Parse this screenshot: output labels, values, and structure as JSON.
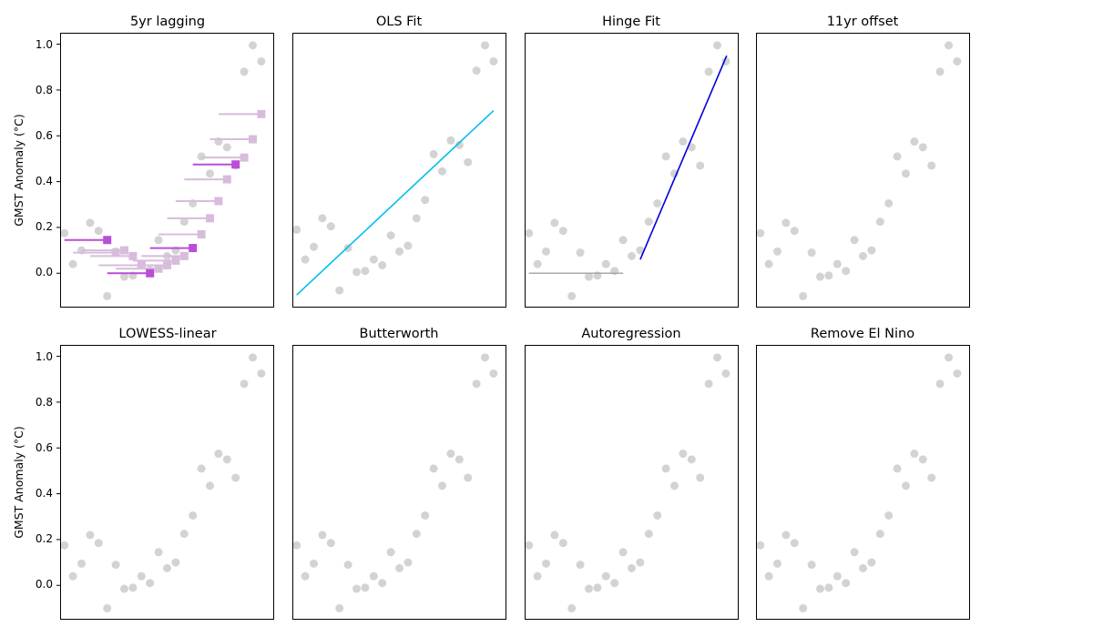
{
  "colors": {
    "background": "#ffffff",
    "data_points": "#d3d3d3",
    "ols_line": "#00bfef",
    "hinge_line": "#0000dd",
    "hinge_flat": "#a9a9a9",
    "lag_highlight": "#b94fd6",
    "lag_faded": "#d8bcdc"
  },
  "chart_data": [
    {
      "type": "scatter",
      "title": "5yr lagging",
      "ylabel": "GMST Anomaly (°C)",
      "xlim": [
        -0.5,
        24.5
      ],
      "ylim": [
        -0.15,
        1.05
      ],
      "yticks": [
        "0.0",
        "0.2",
        "0.4",
        "0.6",
        "0.8",
        "1.0"
      ],
      "points": {
        "x": [
          0,
          1,
          2,
          3,
          4,
          5,
          6,
          7,
          8,
          9,
          10,
          11,
          12,
          13,
          14,
          15,
          16,
          17,
          18,
          19,
          20,
          21,
          22,
          23,
          24
        ],
        "y": [
          0.175,
          0.04,
          0.1,
          0.22,
          0.185,
          -0.1,
          0.095,
          -0.015,
          -0.01,
          0.04,
          0.015,
          0.145,
          0.075,
          0.1,
          0.225,
          0.305,
          0.51,
          0.435,
          0.575,
          0.55,
          0.47,
          0.88,
          0.995,
          0.925,
          null
        ]
      },
      "lag_means": [
        {
          "x_start": 0,
          "x_end": 5,
          "y": 0.145,
          "highlight": true
        },
        {
          "x_start": 1,
          "x_end": 6,
          "y": 0.09,
          "highlight": false
        },
        {
          "x_start": 2,
          "x_end": 7,
          "y": 0.1,
          "highlight": false
        },
        {
          "x_start": 3,
          "x_end": 8,
          "y": 0.075,
          "highlight": false
        },
        {
          "x_start": 4,
          "x_end": 9,
          "y": 0.035,
          "highlight": false
        },
        {
          "x_start": 5,
          "x_end": 10,
          "y": 0.0,
          "highlight": true
        },
        {
          "x_start": 6,
          "x_end": 11,
          "y": 0.02,
          "highlight": false
        },
        {
          "x_start": 7,
          "x_end": 12,
          "y": 0.035,
          "highlight": false
        },
        {
          "x_start": 8,
          "x_end": 13,
          "y": 0.055,
          "highlight": false
        },
        {
          "x_start": 9,
          "x_end": 14,
          "y": 0.075,
          "highlight": false
        },
        {
          "x_start": 10,
          "x_end": 15,
          "y": 0.11,
          "highlight": true
        },
        {
          "x_start": 11,
          "x_end": 16,
          "y": 0.17,
          "highlight": false
        },
        {
          "x_start": 12,
          "x_end": 17,
          "y": 0.24,
          "highlight": false
        },
        {
          "x_start": 13,
          "x_end": 18,
          "y": 0.315,
          "highlight": false
        },
        {
          "x_start": 14,
          "x_end": 19,
          "y": 0.41,
          "highlight": false
        },
        {
          "x_start": 15,
          "x_end": 20,
          "y": 0.475,
          "highlight": true
        },
        {
          "x_start": 16,
          "x_end": 21,
          "y": 0.505,
          "highlight": false
        },
        {
          "x_start": 17,
          "x_end": 22,
          "y": 0.585,
          "highlight": false
        },
        {
          "x_start": 18,
          "x_end": 23,
          "y": 0.695,
          "highlight": false
        }
      ]
    },
    {
      "type": "scatter",
      "title": "OLS Fit",
      "xlim": [
        -0.5,
        24.5
      ],
      "ylim": [
        -0.15,
        1.05
      ],
      "points": {
        "x": [
          0,
          1,
          2,
          3,
          4,
          5,
          6,
          7,
          8,
          9,
          10,
          11,
          12,
          13,
          14,
          15,
          16,
          17,
          18,
          19,
          20,
          21,
          22,
          23
        ],
        "y": [
          0.19,
          0.06,
          0.115,
          0.24,
          0.205,
          -0.075,
          0.11,
          0.005,
          0.01,
          0.06,
          0.035,
          0.165,
          0.095,
          0.12,
          0.24,
          0.32,
          0.52,
          0.445,
          0.58,
          0.56,
          0.485,
          0.885,
          0.995,
          0.925
        ]
      },
      "fit_line": {
        "x": [
          0,
          23
        ],
        "y": [
          -0.095,
          0.71
        ]
      }
    },
    {
      "type": "scatter",
      "title": "Hinge Fit",
      "xlim": [
        -0.5,
        24.5
      ],
      "ylim": [
        -0.15,
        1.05
      ],
      "points": {
        "x": [
          0,
          1,
          2,
          3,
          4,
          5,
          6,
          7,
          8,
          9,
          10,
          11,
          12,
          13,
          14,
          15,
          16,
          17,
          18,
          19,
          20,
          21,
          22,
          23
        ],
        "y": [
          0.175,
          0.04,
          0.095,
          0.22,
          0.185,
          -0.1,
          0.09,
          -0.015,
          -0.01,
          0.04,
          0.01,
          0.145,
          0.075,
          0.1,
          0.225,
          0.305,
          0.51,
          0.435,
          0.575,
          0.55,
          0.47,
          0.88,
          0.995,
          0.925
        ]
      },
      "flat_segment": {
        "x": [
          0,
          11
        ],
        "y": [
          0.0,
          0.0
        ]
      },
      "hinge_line": {
        "x": [
          13,
          23.1
        ],
        "y": [
          0.06,
          0.95
        ]
      }
    },
    {
      "type": "scatter",
      "title": "11yr offset",
      "xlim": [
        -0.5,
        24.5
      ],
      "ylim": [
        -0.15,
        1.05
      ],
      "points": {
        "x": [
          0,
          1,
          2,
          3,
          4,
          5,
          6,
          7,
          8,
          9,
          10,
          11,
          12,
          13,
          14,
          15,
          16,
          17,
          18,
          19,
          20,
          21,
          22,
          23
        ],
        "y": [
          0.175,
          0.04,
          0.095,
          0.22,
          0.185,
          -0.1,
          0.09,
          -0.015,
          -0.01,
          0.04,
          0.01,
          0.145,
          0.075,
          0.1,
          0.225,
          0.305,
          0.51,
          0.435,
          0.575,
          0.55,
          0.47,
          0.88,
          0.995,
          0.925
        ]
      }
    },
    {
      "type": "scatter",
      "title": "LOWESS-linear",
      "ylabel": "GMST Anomaly (°C)",
      "xlim": [
        -0.5,
        24.5
      ],
      "ylim": [
        -0.15,
        1.05
      ],
      "yticks": [
        "0.0",
        "0.2",
        "0.4",
        "0.6",
        "0.8",
        "1.0"
      ],
      "points": {
        "x": [
          0,
          1,
          2,
          3,
          4,
          5,
          6,
          7,
          8,
          9,
          10,
          11,
          12,
          13,
          14,
          15,
          16,
          17,
          18,
          19,
          20,
          21,
          22,
          23
        ],
        "y": [
          0.175,
          0.04,
          0.095,
          0.22,
          0.185,
          -0.1,
          0.09,
          -0.015,
          -0.01,
          0.04,
          0.01,
          0.145,
          0.075,
          0.1,
          0.225,
          0.305,
          0.51,
          0.435,
          0.575,
          0.55,
          0.47,
          0.88,
          0.995,
          0.925
        ]
      }
    },
    {
      "type": "scatter",
      "title": "Butterworth",
      "xlim": [
        -0.5,
        24.5
      ],
      "ylim": [
        -0.15,
        1.05
      ],
      "points": {
        "x": [
          0,
          1,
          2,
          3,
          4,
          5,
          6,
          7,
          8,
          9,
          10,
          11,
          12,
          13,
          14,
          15,
          16,
          17,
          18,
          19,
          20,
          21,
          22,
          23
        ],
        "y": [
          0.175,
          0.04,
          0.095,
          0.22,
          0.185,
          -0.1,
          0.09,
          -0.015,
          -0.01,
          0.04,
          0.01,
          0.145,
          0.075,
          0.1,
          0.225,
          0.305,
          0.51,
          0.435,
          0.575,
          0.55,
          0.47,
          0.88,
          0.995,
          0.925
        ]
      }
    },
    {
      "type": "scatter",
      "title": "Autoregression",
      "xlim": [
        -0.5,
        24.5
      ],
      "ylim": [
        -0.15,
        1.05
      ],
      "points": {
        "x": [
          0,
          1,
          2,
          3,
          4,
          5,
          6,
          7,
          8,
          9,
          10,
          11,
          12,
          13,
          14,
          15,
          16,
          17,
          18,
          19,
          20,
          21,
          22,
          23
        ],
        "y": [
          0.175,
          0.04,
          0.095,
          0.22,
          0.185,
          -0.1,
          0.09,
          -0.015,
          -0.01,
          0.04,
          0.01,
          0.145,
          0.075,
          0.1,
          0.225,
          0.305,
          0.51,
          0.435,
          0.575,
          0.55,
          0.47,
          0.88,
          0.995,
          0.925
        ]
      }
    },
    {
      "type": "scatter",
      "title": "Remove El Nino",
      "xlim": [
        -0.5,
        24.5
      ],
      "ylim": [
        -0.15,
        1.05
      ],
      "points": {
        "x": [
          0,
          1,
          2,
          3,
          4,
          5,
          6,
          7,
          8,
          9,
          10,
          11,
          12,
          13,
          14,
          15,
          16,
          17,
          18,
          19,
          20,
          21,
          22,
          23
        ],
        "y": [
          0.175,
          0.04,
          0.095,
          0.22,
          0.185,
          -0.1,
          0.09,
          -0.015,
          -0.01,
          0.04,
          0.01,
          0.145,
          0.075,
          0.1,
          0.225,
          0.305,
          0.51,
          0.435,
          0.575,
          0.55,
          0.47,
          0.88,
          0.995,
          0.925
        ]
      }
    }
  ]
}
